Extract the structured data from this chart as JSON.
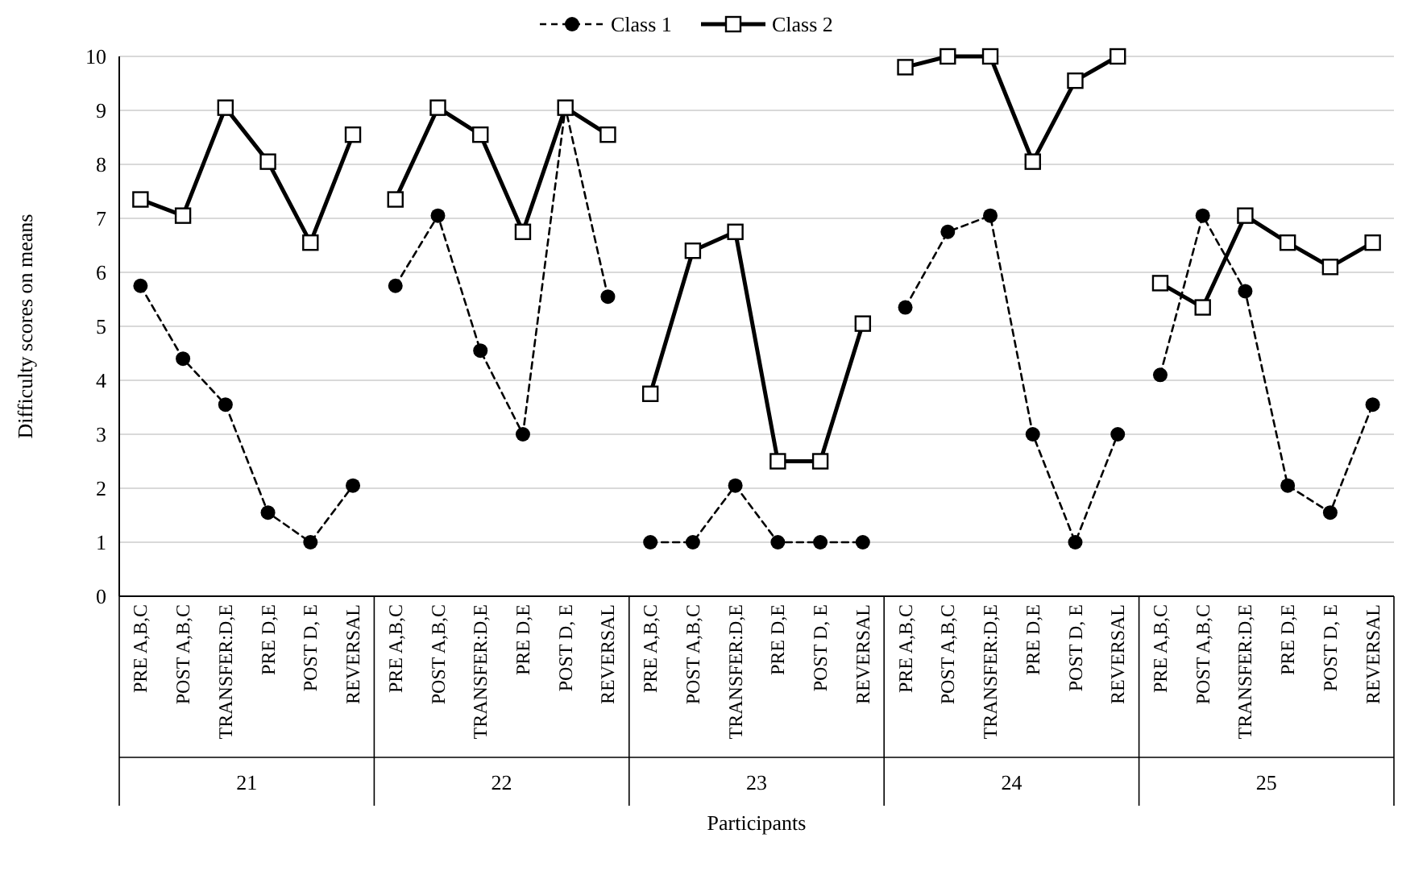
{
  "chart_data": {
    "type": "line",
    "xlabel": "Participants",
    "ylabel": "Difficulty scores on means",
    "categories": [
      "PRE A,B,C",
      "POST A,B,C",
      "TRANSFER:D,E",
      "PRE D,E",
      "POST D, E",
      "REVERSAL",
      "PRE A,B,C",
      "POST A,B,C",
      "TRANSFER:D,E",
      "PRE D,E",
      "POST D, E",
      "REVERSAL",
      "PRE A,B,C",
      "POST A,B,C",
      "TRANSFER:D,E",
      "PRE D,E",
      "POST D, E",
      "REVERSAL",
      "PRE A,B,C",
      "POST A,B,C",
      "TRANSFER:D,E",
      "PRE D,E",
      "POST D, E",
      "REVERSAL",
      "PRE A,B,C",
      "POST A,B,C",
      "TRANSFER:D,E",
      "PRE D,E",
      "POST D, E",
      "REVERSAL"
    ],
    "annotations": [
      "21",
      "22",
      "23",
      "24",
      "25"
    ],
    "series": [
      {
        "name": "Class 1",
        "color": "#000000",
        "marker": "circle",
        "line_style": "dashed",
        "values": [
          5.75,
          4.4,
          3.55,
          1.55,
          1,
          2.05,
          5.75,
          7.05,
          4.55,
          3,
          9.05,
          5.55,
          1,
          1,
          2.05,
          1,
          1,
          1,
          5.35,
          6.75,
          7.05,
          3,
          1,
          3,
          4.1,
          7.05,
          5.65,
          2.05,
          1.55,
          3.55
        ]
      },
      {
        "name": "Class 2",
        "color": "#000000",
        "marker": "square",
        "line_style": "solid",
        "values": [
          7.35,
          7.05,
          9.05,
          8.05,
          6.55,
          8.55,
          7.35,
          9.05,
          8.55,
          6.75,
          9.05,
          8.55,
          3.75,
          6.4,
          6.75,
          2.5,
          2.5,
          5.05,
          9.8,
          10,
          10,
          8.05,
          9.55,
          10,
          5.8,
          5.35,
          7.05,
          6.55,
          6.1,
          6.55
        ]
      }
    ],
    "ylim": [
      0,
      10
    ],
    "yticks": [
      0,
      1,
      2,
      3,
      4,
      5,
      6,
      7,
      8,
      9,
      10
    ],
    "grid": "y",
    "legend": "top"
  }
}
